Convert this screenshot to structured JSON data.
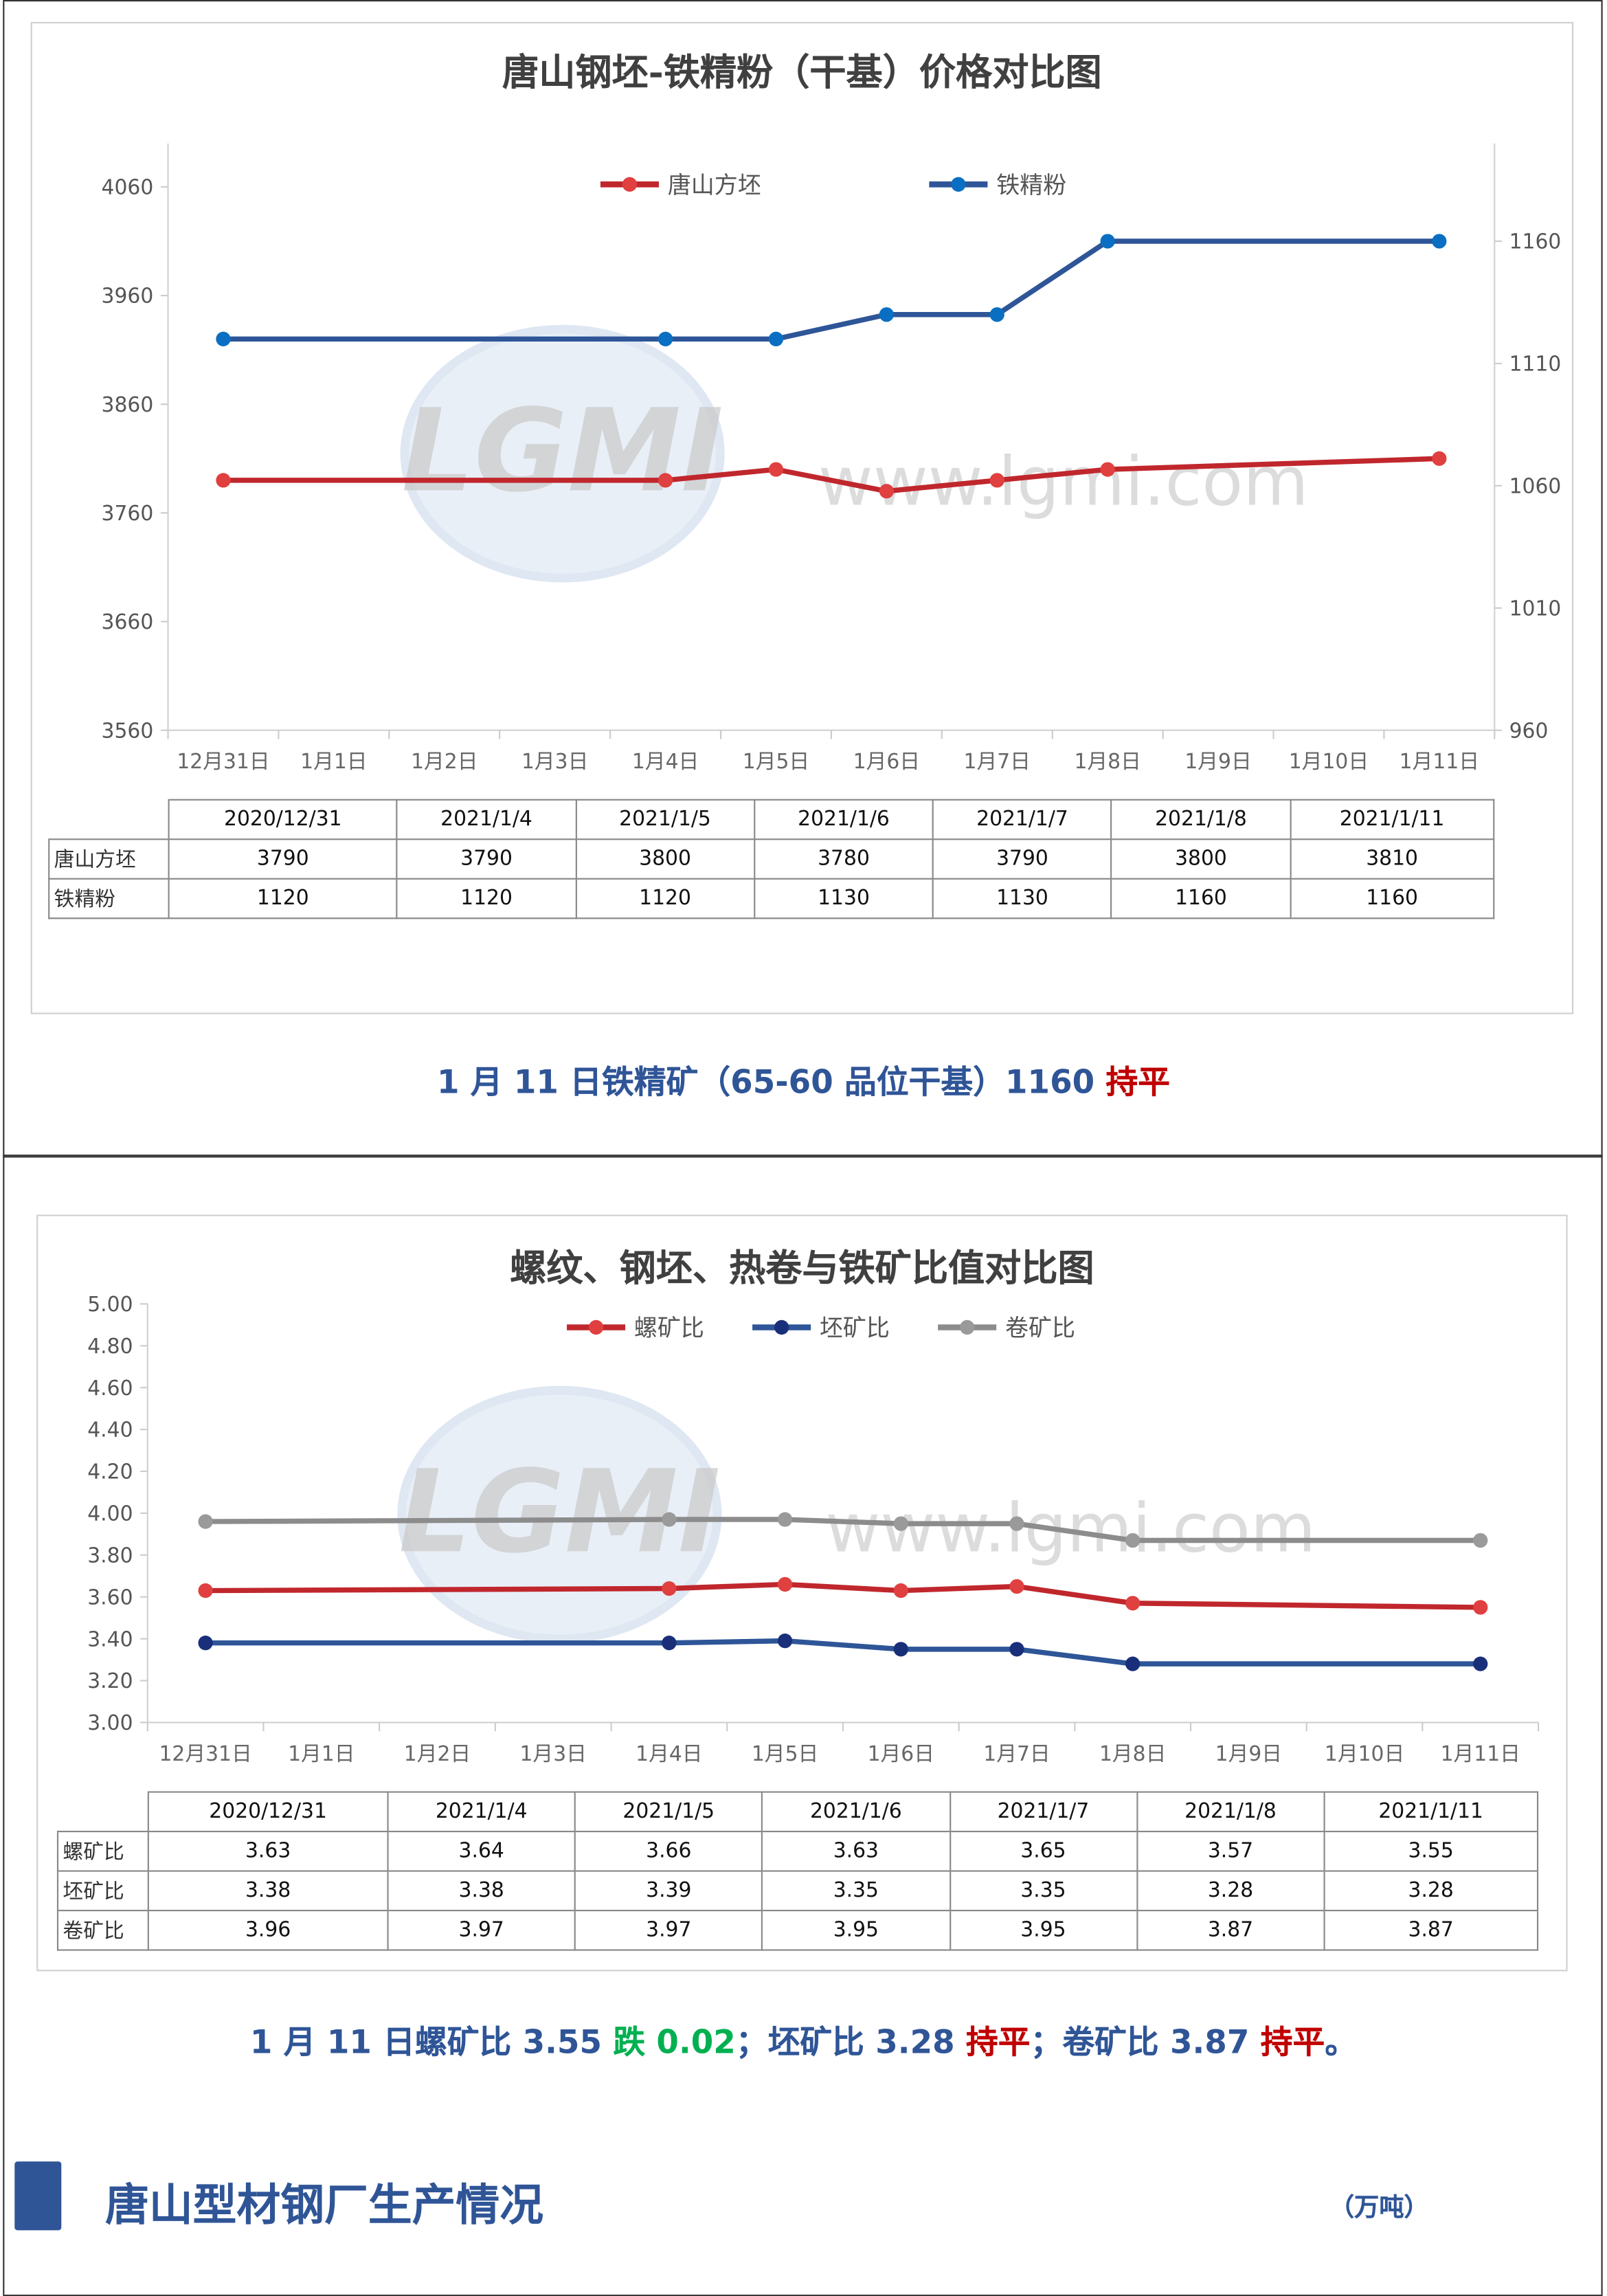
{
  "watermark": {
    "logo": "LGMI",
    "url": "www.lgmi.com"
  },
  "chart_data": [
    {
      "type": "line",
      "title": "唐山钢坯-铁精粉（干基）价格对比图",
      "categories": [
        "12月31日",
        "1月1日",
        "1月2日",
        "1月3日",
        "1月4日",
        "1月5日",
        "1月6日",
        "1月7日",
        "1月8日",
        "1月9日",
        "1月10日",
        "1月11日"
      ],
      "left_axis": {
        "ticks": [
          3560,
          3660,
          3760,
          3860,
          3960,
          4060
        ],
        "ylim": [
          3560,
          4100
        ]
      },
      "right_axis": {
        "ticks": [
          960,
          1010,
          1060,
          1110,
          1160
        ],
        "ylim": [
          960,
          1200
        ]
      },
      "series": [
        {
          "name": "唐山方坯",
          "axis": "left",
          "color": "#c0272d",
          "marker": "#e04040",
          "points": [
            [
              0,
              3790
            ],
            [
              4,
              3790
            ],
            [
              5,
              3800
            ],
            [
              6,
              3780
            ],
            [
              7,
              3790
            ],
            [
              8,
              3800
            ],
            [
              11,
              3810
            ]
          ]
        },
        {
          "name": "铁精粉",
          "axis": "right",
          "color": "#2e5597",
          "marker": "#0a6fc2",
          "points": [
            [
              0,
              1120
            ],
            [
              4,
              1120
            ],
            [
              5,
              1120
            ],
            [
              6,
              1130
            ],
            [
              7,
              1130
            ],
            [
              8,
              1160
            ],
            [
              11,
              1160
            ]
          ]
        }
      ],
      "table": {
        "dates": [
          "2020/12/31",
          "2021/1/4",
          "2021/1/5",
          "2021/1/6",
          "2021/1/7",
          "2021/1/8",
          "2021/1/11"
        ],
        "rows": [
          {
            "label": "唐山方坯",
            "values": [
              "3790",
              "3790",
              "3800",
              "3780",
              "3790",
              "3800",
              "3810"
            ]
          },
          {
            "label": "铁精粉",
            "values": [
              "1120",
              "1120",
              "1120",
              "1130",
              "1130",
              "1160",
              "1160"
            ]
          }
        ]
      }
    },
    {
      "type": "line",
      "title": "螺纹、钢坯、热卷与铁矿比值对比图",
      "categories": [
        "12月31日",
        "1月1日",
        "1月2日",
        "1月3日",
        "1月4日",
        "1月5日",
        "1月6日",
        "1月7日",
        "1月8日",
        "1月9日",
        "1月10日",
        "1月11日"
      ],
      "left_axis": {
        "ticks": [
          "3.00",
          "3.20",
          "3.40",
          "3.60",
          "3.80",
          "4.00",
          "4.20",
          "4.40",
          "4.60",
          "4.80",
          "5.00"
        ],
        "ylim": [
          3.0,
          5.0
        ]
      },
      "series": [
        {
          "name": "螺矿比",
          "color": "#c0272d",
          "marker": "#e04040",
          "points": [
            [
              0,
              3.63
            ],
            [
              4,
              3.64
            ],
            [
              5,
              3.66
            ],
            [
              6,
              3.63
            ],
            [
              7,
              3.65
            ],
            [
              8,
              3.57
            ],
            [
              11,
              3.55
            ]
          ]
        },
        {
          "name": "坯矿比",
          "color": "#2e5597",
          "marker": "#1a2f7a",
          "points": [
            [
              0,
              3.38
            ],
            [
              4,
              3.38
            ],
            [
              5,
              3.39
            ],
            [
              6,
              3.35
            ],
            [
              7,
              3.35
            ],
            [
              8,
              3.28
            ],
            [
              11,
              3.28
            ]
          ]
        },
        {
          "name": "卷矿比",
          "color": "#8c8c8c",
          "marker": "#9a9a9a",
          "points": [
            [
              0,
              3.96
            ],
            [
              4,
              3.97
            ],
            [
              5,
              3.97
            ],
            [
              6,
              3.95
            ],
            [
              7,
              3.95
            ],
            [
              8,
              3.87
            ],
            [
              11,
              3.87
            ]
          ]
        }
      ],
      "table": {
        "dates": [
          "2020/12/31",
          "2021/1/4",
          "2021/1/5",
          "2021/1/6",
          "2021/1/7",
          "2021/1/8",
          "2021/1/11"
        ],
        "rows": [
          {
            "label": "螺矿比",
            "values": [
              "3.63",
              "3.64",
              "3.66",
              "3.63",
              "3.65",
              "3.57",
              "3.55"
            ]
          },
          {
            "label": "坯矿比",
            "values": [
              "3.38",
              "3.38",
              "3.39",
              "3.35",
              "3.35",
              "3.28",
              "3.28"
            ]
          },
          {
            "label": "卷矿比",
            "values": [
              "3.96",
              "3.97",
              "3.97",
              "3.95",
              "3.95",
              "3.87",
              "3.87"
            ]
          }
        ]
      }
    }
  ],
  "summary1": {
    "main": "1 月 11 日铁精矿（65-60 品位干基）1160 ",
    "status": "持平"
  },
  "summary2": {
    "p1": "1 月 11 日螺矿比 3.55 ",
    "s1": "跌 0.02",
    "p2": "；坯矿比 3.28 ",
    "s2": "持平",
    "p3": "；卷矿比 3.87 ",
    "s3": "持平",
    "p4": "。"
  },
  "section": {
    "title": "唐山型材钢厂生产情况",
    "unit": "（万吨）"
  }
}
